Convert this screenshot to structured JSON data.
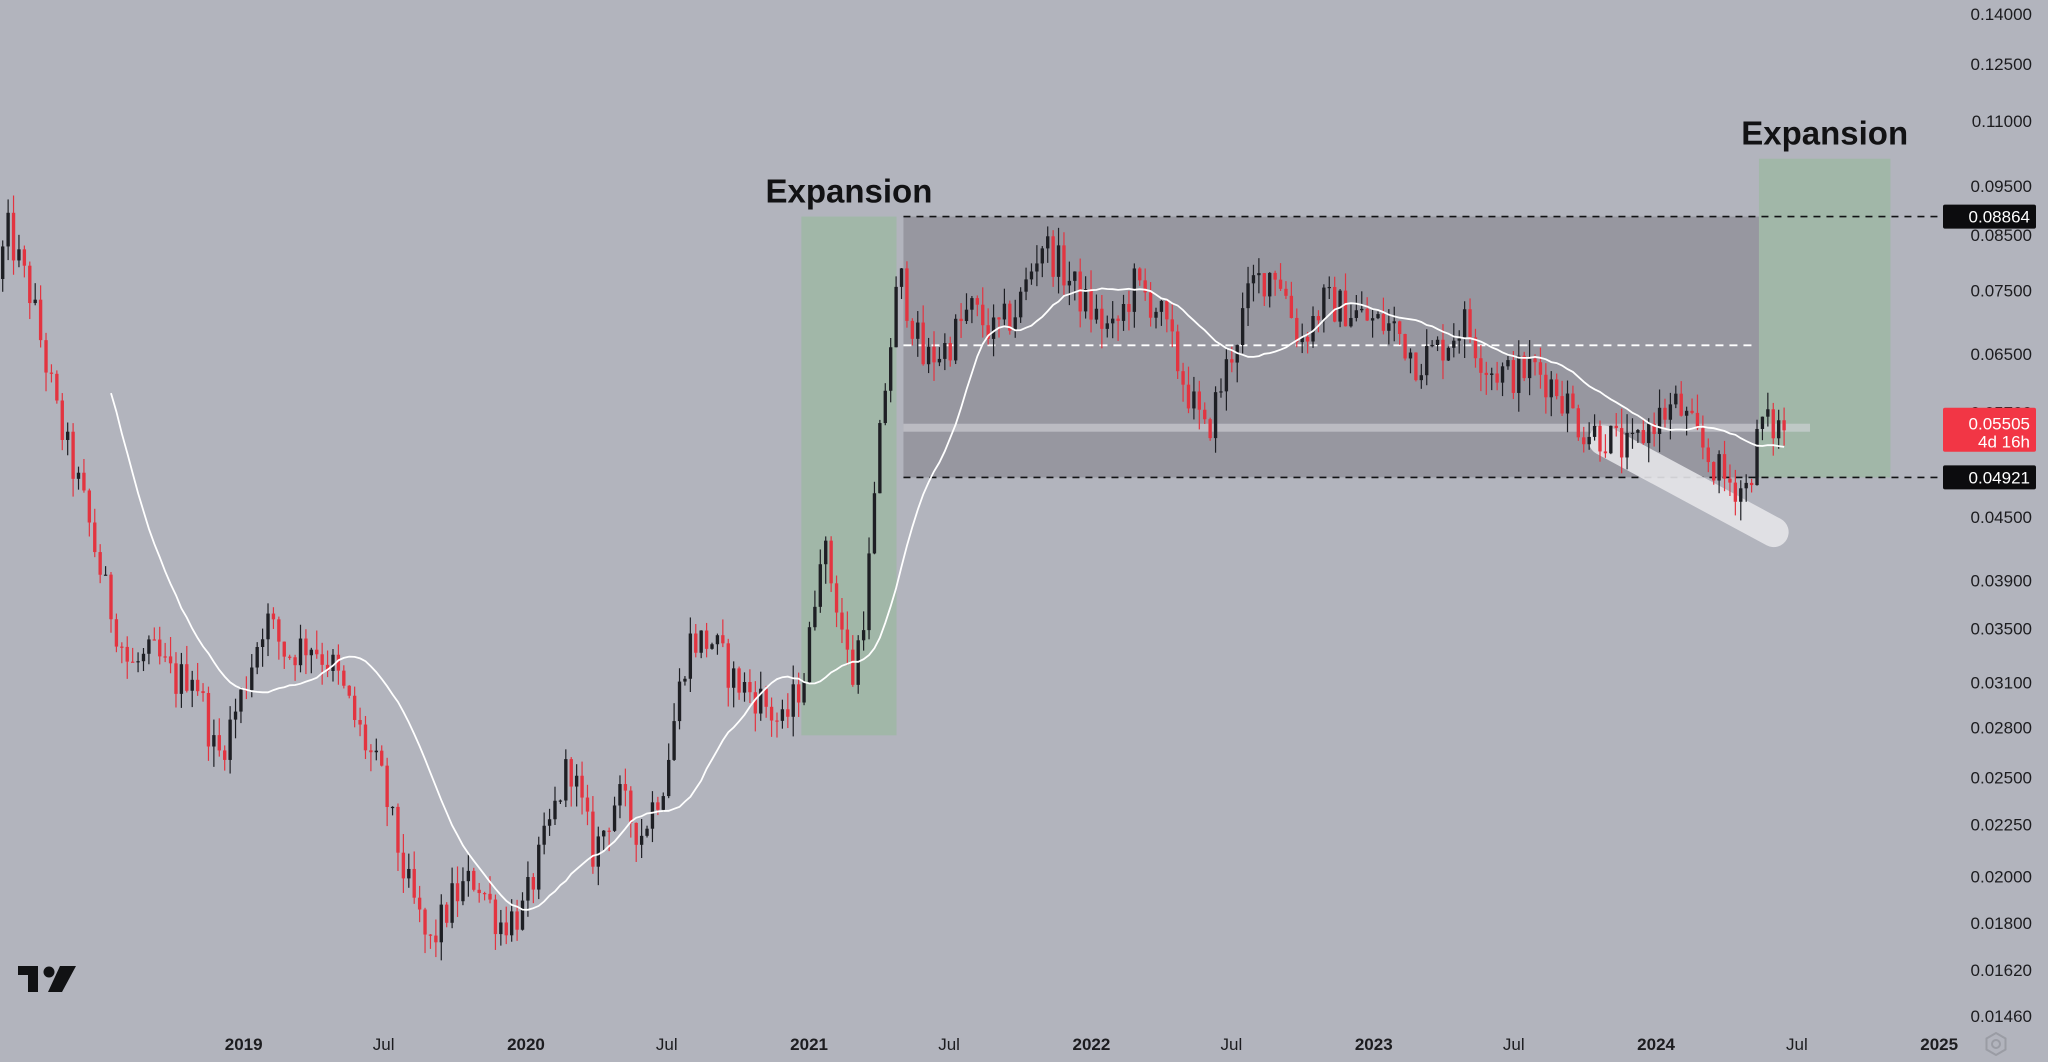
{
  "chart_data": {
    "type": "candlestick",
    "y_scale": "log",
    "ylim": [
      0.0146,
      0.14
    ],
    "x_range": [
      "2018-02-20",
      "2025-05-01"
    ],
    "y_ticks": [
      "0.14000",
      "0.12500",
      "0.11000",
      "0.09500",
      "0.08500",
      "0.07500",
      "0.06500",
      "0.05700",
      "0.04500",
      "0.03900",
      "0.03500",
      "0.03100",
      "0.02800",
      "0.02500",
      "0.02250",
      "0.02000",
      "0.01800",
      "0.01620",
      "0.01460"
    ],
    "x_ticks": [
      {
        "label": "2019",
        "date": "2019-01-01",
        "year": true
      },
      {
        "label": "Jul",
        "date": "2019-07-01",
        "year": false
      },
      {
        "label": "2020",
        "date": "2020-01-01",
        "year": true
      },
      {
        "label": "Jul",
        "date": "2020-07-01",
        "year": false
      },
      {
        "label": "2021",
        "date": "2021-01-01",
        "year": true
      },
      {
        "label": "Jul",
        "date": "2021-07-01",
        "year": false
      },
      {
        "label": "2022",
        "date": "2022-01-01",
        "year": true
      },
      {
        "label": "Jul",
        "date": "2022-07-01",
        "year": false
      },
      {
        "label": "2023",
        "date": "2023-01-01",
        "year": true
      },
      {
        "label": "Jul",
        "date": "2023-07-01",
        "year": false
      },
      {
        "label": "2024",
        "date": "2024-01-01",
        "year": true
      },
      {
        "label": "Jul",
        "date": "2024-07-01",
        "year": false
      },
      {
        "label": "2025",
        "date": "2025-01-01",
        "year": true
      }
    ],
    "price_path": [
      [
        "2018-02-20",
        0.077
      ],
      [
        "2018-03-05",
        0.086
      ],
      [
        "2018-04-05",
        0.074
      ],
      [
        "2018-05-10",
        0.056
      ],
      [
        "2018-06-10",
        0.047
      ],
      [
        "2018-07-10",
        0.038
      ],
      [
        "2018-08-10",
        0.032
      ],
      [
        "2018-09-10",
        0.033
      ],
      [
        "2018-10-10",
        0.031
      ],
      [
        "2018-11-01",
        0.032
      ],
      [
        "2018-12-01",
        0.026
      ],
      [
        "2019-01-01",
        0.03
      ],
      [
        "2019-02-01",
        0.036
      ],
      [
        "2019-03-01",
        0.033
      ],
      [
        "2019-04-01",
        0.034
      ],
      [
        "2019-05-01",
        0.032
      ],
      [
        "2019-06-01",
        0.028
      ],
      [
        "2019-07-01",
        0.025
      ],
      [
        "2019-08-01",
        0.02
      ],
      [
        "2019-09-01",
        0.017
      ],
      [
        "2019-10-01",
        0.019
      ],
      [
        "2019-11-01",
        0.02
      ],
      [
        "2019-12-01",
        0.018
      ],
      [
        "2020-01-01",
        0.0185
      ],
      [
        "2020-02-01",
        0.022
      ],
      [
        "2020-03-01",
        0.026
      ],
      [
        "2020-04-01",
        0.021
      ],
      [
        "2020-05-01",
        0.024
      ],
      [
        "2020-06-01",
        0.022
      ],
      [
        "2020-07-01",
        0.025
      ],
      [
        "2020-08-01",
        0.034
      ],
      [
        "2020-09-01",
        0.034
      ],
      [
        "2020-10-01",
        0.031
      ],
      [
        "2020-11-01",
        0.03
      ],
      [
        "2020-12-01",
        0.028
      ],
      [
        "2021-01-01",
        0.032
      ],
      [
        "2021-01-20",
        0.043
      ],
      [
        "2021-02-10",
        0.037
      ],
      [
        "2021-03-01",
        0.031
      ],
      [
        "2021-03-20",
        0.038
      ],
      [
        "2021-04-10",
        0.058
      ],
      [
        "2021-05-01",
        0.078
      ],
      [
        "2021-06-01",
        0.064
      ],
      [
        "2021-07-01",
        0.066
      ],
      [
        "2021-08-01",
        0.072
      ],
      [
        "2021-09-01",
        0.068
      ],
      [
        "2021-10-01",
        0.072
      ],
      [
        "2021-11-01",
        0.084
      ],
      [
        "2021-12-01",
        0.078
      ],
      [
        "2022-01-01",
        0.072
      ],
      [
        "2022-02-01",
        0.068
      ],
      [
        "2022-03-01",
        0.076
      ],
      [
        "2022-04-01",
        0.072
      ],
      [
        "2022-05-01",
        0.062
      ],
      [
        "2022-06-01",
        0.054
      ],
      [
        "2022-07-01",
        0.064
      ],
      [
        "2022-08-01",
        0.076
      ],
      [
        "2022-09-01",
        0.079
      ],
      [
        "2022-10-01",
        0.067
      ],
      [
        "2022-11-01",
        0.073
      ],
      [
        "2022-12-01",
        0.072
      ],
      [
        "2023-01-01",
        0.07
      ],
      [
        "2023-02-01",
        0.069
      ],
      [
        "2023-03-01",
        0.064
      ],
      [
        "2023-04-01",
        0.066
      ],
      [
        "2023-05-01",
        0.07
      ],
      [
        "2023-06-01",
        0.063
      ],
      [
        "2023-07-01",
        0.062
      ],
      [
        "2023-08-01",
        0.063
      ],
      [
        "2023-09-01",
        0.06
      ],
      [
        "2023-10-01",
        0.055
      ],
      [
        "2023-11-01",
        0.054
      ],
      [
        "2023-12-01",
        0.052
      ],
      [
        "2024-01-01",
        0.056
      ],
      [
        "2024-02-01",
        0.058
      ],
      [
        "2024-03-01",
        0.053
      ],
      [
        "2024-04-01",
        0.049
      ],
      [
        "2024-05-01",
        0.048
      ],
      [
        "2024-05-20",
        0.056
      ],
      [
        "2024-06-01",
        0.055
      ],
      [
        "2024-06-15",
        0.0552
      ]
    ],
    "candle_interval_days": 7,
    "series": [
      {
        "name": "",
        "type": "moving-average",
        "color": "#ffffff"
      }
    ],
    "range_box": {
      "from": "2021-05-03",
      "to": "2024-05-13",
      "top": 0.08864,
      "bottom": 0.04921
    },
    "mid_line": {
      "from": "2021-05-03",
      "to": "2024-05-06",
      "value": 0.0663
    },
    "horizontal_levels": [
      {
        "label": "0.08864",
        "value": 0.08864
      },
      {
        "label": "0.04921",
        "value": 0.04921
      }
    ],
    "last_price_band": 0.05505,
    "expansion_zones": [
      {
        "label": "Expansion",
        "from": "2020-12-22",
        "to": "2021-04-24",
        "top": 0.08864,
        "bottom": 0.0275
      },
      {
        "label": "Expansion",
        "from": "2024-05-13",
        "to": "2024-10-30",
        "top": 0.101,
        "bottom": 0.04921
      }
    ],
    "highlight_stroke": {
      "from": "2023-10-25",
      "to": "2024-06-01",
      "start": 0.0535,
      "end": 0.0435
    }
  },
  "price_tag": {
    "value": "0.05505",
    "countdown": "4d 16h"
  },
  "level_tags": [
    "0.08864",
    "0.04921"
  ],
  "colors": {
    "background": "#b2b4bd",
    "bull": "#1e1f24",
    "bear": "#e33440",
    "range_box": "#8c8c94",
    "expansion": "#9db7a5",
    "ma": "#ffffff",
    "tag_dark": "#0c0c0e",
    "tag_red": "#f23645"
  },
  "logo": {
    "icon": "tradingview-logo-icon"
  },
  "footer_icon": "settings-gear-icon"
}
